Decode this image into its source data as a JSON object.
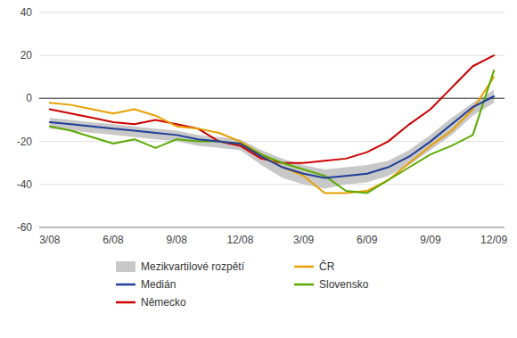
{
  "chart_data": {
    "type": "line",
    "categories": [
      "3/08",
      null,
      null,
      "6/08",
      null,
      null,
      "9/08",
      null,
      null,
      "12/08",
      null,
      null,
      "3/09",
      null,
      null,
      "6/09",
      null,
      null,
      "9/09",
      null,
      null,
      "12/09"
    ],
    "series": [
      {
        "name": "Mezikvartilové rozpětí",
        "type": "band",
        "color": "#c8c8c8",
        "low": [
          -14,
          -15,
          -16,
          -17,
          -18,
          -19,
          -20,
          -22,
          -23,
          -24,
          -31,
          -37,
          -40,
          -42,
          -40,
          -39,
          -36,
          -31,
          -24,
          -17,
          -8,
          -2
        ],
        "high": [
          -9,
          -10,
          -11,
          -12,
          -13,
          -14,
          -15,
          -17,
          -18,
          -19,
          -24,
          -28,
          -31,
          -33,
          -32,
          -31,
          -29,
          -24,
          -17,
          -9,
          -2,
          4
        ]
      },
      {
        "name": "Medián",
        "type": "line",
        "color": "#1f3d99",
        "values": [
          -11,
          -12,
          -13,
          -14,
          -15,
          -16,
          -17,
          -19,
          -20,
          -21,
          -27,
          -32,
          -35,
          -37,
          -36,
          -35,
          -32,
          -27,
          -20,
          -12,
          -4,
          1
        ]
      },
      {
        "name": "Německo",
        "type": "line",
        "color": "#cc0000",
        "values": [
          -5,
          -7,
          -9,
          -11,
          -12,
          -10,
          -12,
          -14,
          -20,
          -22,
          -28,
          -30,
          -30,
          -29,
          -28,
          -25,
          -20,
          -12,
          -5,
          5,
          15,
          20
        ]
      },
      {
        "name": "ČR",
        "type": "line",
        "color": "#e8a000",
        "values": [
          -2,
          -3,
          -5,
          -7,
          -5,
          -8,
          -13,
          -14,
          -16,
          -20,
          -26,
          -32,
          -36,
          -44,
          -44,
          -43,
          -38,
          -30,
          -22,
          -15,
          -5,
          10
        ]
      },
      {
        "name": "Slovensko",
        "type": "line",
        "color": "#5aaa00",
        "values": [
          -13,
          -15,
          -18,
          -21,
          -19,
          -23,
          -19,
          -20,
          -20,
          -21,
          -26,
          -30,
          -33,
          -36,
          -43,
          -44,
          -38,
          -32,
          -26,
          -22,
          -17,
          13
        ]
      }
    ],
    "ylim": [
      -60,
      40
    ],
    "yticks": [
      -60,
      -40,
      -20,
      0,
      20,
      40
    ],
    "grid": true,
    "legend": "bottom"
  }
}
